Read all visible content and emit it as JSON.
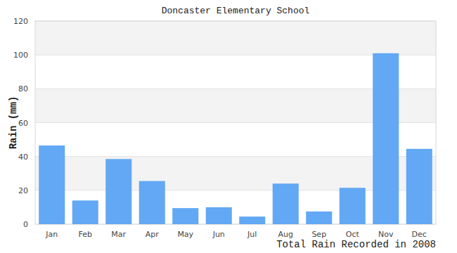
{
  "chart_data": {
    "type": "bar",
    "title": "Doncaster Elementary School",
    "x_label": "Total Rain Recorded in 2008",
    "y_label": "Rain (mm)",
    "categories": [
      "Jan",
      "Feb",
      "Mar",
      "Apr",
      "May",
      "Jun",
      "Jul",
      "Aug",
      "Sep",
      "Oct",
      "Nov",
      "Dec"
    ],
    "values": [
      46.5,
      14,
      38.5,
      25.5,
      9.5,
      10,
      4.5,
      24,
      7.5,
      21.5,
      101,
      44.5
    ],
    "color": "#62a8f4",
    "ylim": [
      0,
      120
    ],
    "yticks": [
      0,
      20,
      40,
      60,
      80,
      100,
      120
    ],
    "grid": true
  }
}
